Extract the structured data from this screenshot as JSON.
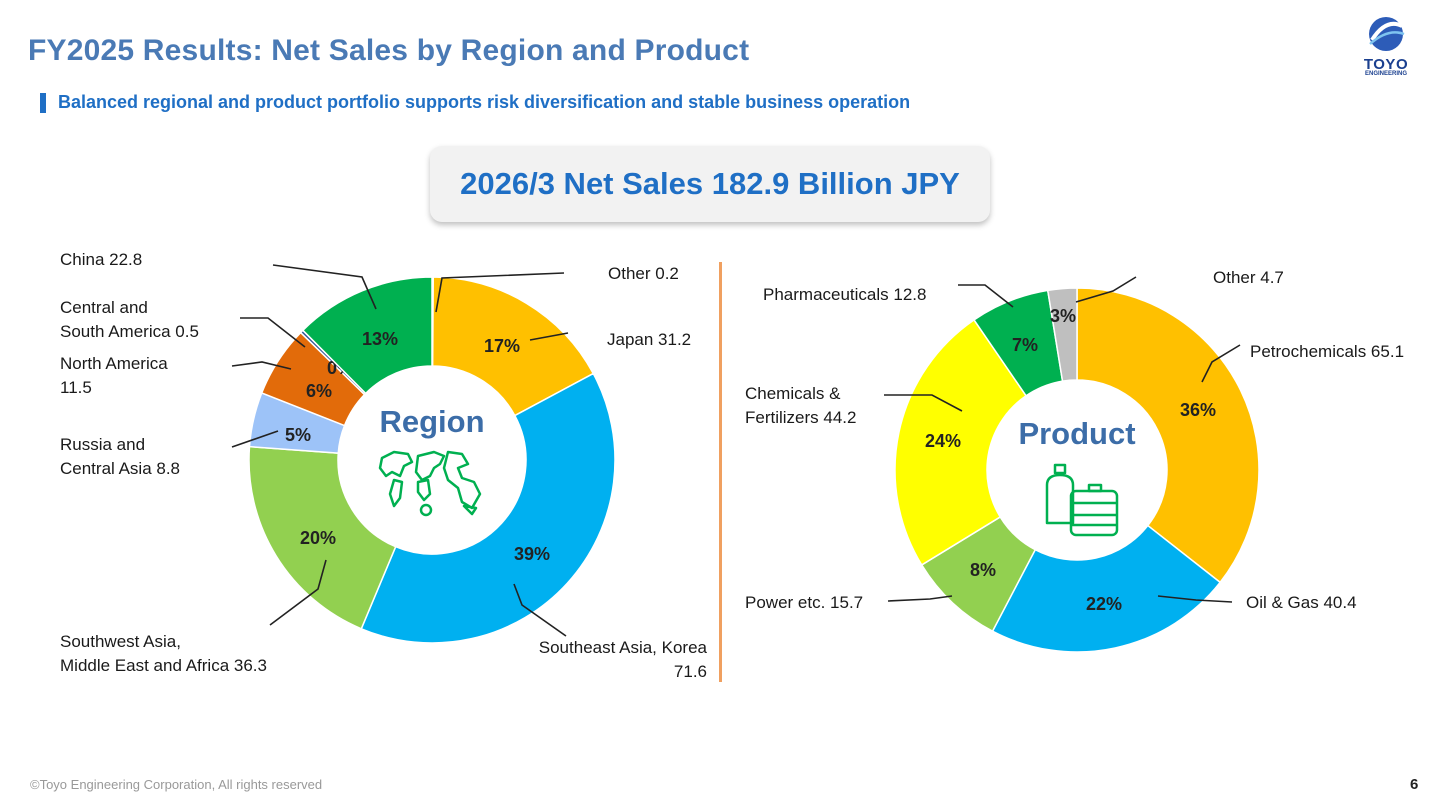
{
  "header": {
    "title": "FY2025 Results: Net Sales by Region and Product",
    "subtitle": "Balanced regional and product portfolio supports risk diversification and stable business operation",
    "logo_text": "TOYO",
    "logo_sub": "ENGINEERING"
  },
  "banner": {
    "text": "2026/3 Net Sales 182.9 Billion JPY"
  },
  "footer": {
    "copyright": "©Toyo Engineering Corporation, All rights reserved",
    "page": "6"
  },
  "chart_data": [
    {
      "type": "pie",
      "title": "Region",
      "slices": [
        {
          "name": "Other",
          "value": 0.2,
          "pct": "0%",
          "color": "#8bb0d8",
          "label": "Other    0.2"
        },
        {
          "name": "Japan",
          "value": 31.2,
          "pct": "17%",
          "color": "#ffc000",
          "label": "Japan 31.2"
        },
        {
          "name": "Southeast Asia, Korea",
          "value": 71.6,
          "pct": "39%",
          "color": "#00b0f0",
          "label": "Southeast Asia, Korea\n71.6"
        },
        {
          "name": "Southwest Asia, Middle East and Africa",
          "value": 36.3,
          "pct": "20%",
          "color": "#92d050",
          "label": "Southwest Asia,\nMiddle East and Africa 36.3"
        },
        {
          "name": "Russia and Central Asia",
          "value": 8.8,
          "pct": "5%",
          "color": "#9dc3f8",
          "label": "Russia and\nCentral Asia 8.8"
        },
        {
          "name": "North America",
          "value": 11.5,
          "pct": "6%",
          "color": "#e26b0a",
          "label": "North America\n11.5"
        },
        {
          "name": "Central and South America",
          "value": 0.5,
          "pct": "0%",
          "color": "#2f5597",
          "label": "Central and\nSouth America 0.5"
        },
        {
          "name": "China",
          "value": 22.8,
          "pct": "13%",
          "color": "#00b050",
          "label": "China    22.8"
        }
      ]
    },
    {
      "type": "pie",
      "title": "Product",
      "slices": [
        {
          "name": "Petrochemicals",
          "value": 65.1,
          "pct": "36%",
          "color": "#ffc000",
          "label": "Petrochemicals 65.1"
        },
        {
          "name": "Oil & Gas",
          "value": 40.4,
          "pct": "22%",
          "color": "#00b0f0",
          "label": "Oil & Gas 40.4"
        },
        {
          "name": "Power etc.",
          "value": 15.7,
          "pct": "8%",
          "color": "#92d050",
          "label": "Power etc. 15.7"
        },
        {
          "name": "Chemicals & Fertilizers",
          "value": 44.2,
          "pct": "24%",
          "color": "#ffff00",
          "label": "Chemicals &\nFertilizers 44.2"
        },
        {
          "name": "Pharmaceuticals",
          "value": 12.8,
          "pct": "7%",
          "color": "#00b050",
          "label": "Pharmaceuticals 12.8"
        },
        {
          "name": "Other",
          "value": 4.7,
          "pct": "3%",
          "color": "#bfbfbf",
          "label": "Other 4.7"
        }
      ]
    }
  ]
}
